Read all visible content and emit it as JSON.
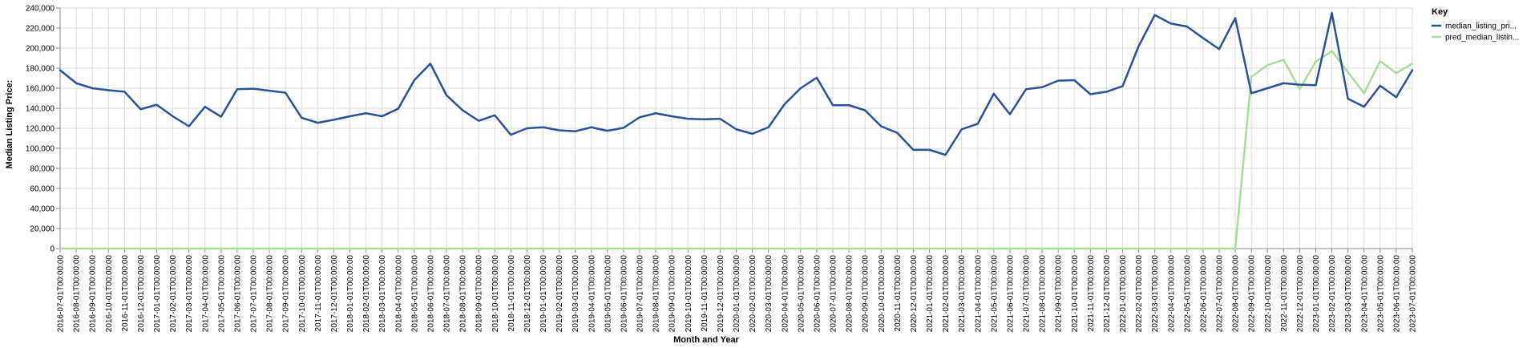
{
  "chart_data": {
    "type": "line",
    "title": "",
    "xlabel": "Month and Year",
    "ylabel": "Median Listing Price:",
    "ylim": [
      0,
      240000
    ],
    "y_ticks": [
      0,
      20000,
      40000,
      60000,
      80000,
      100000,
      120000,
      140000,
      160000,
      180000,
      200000,
      220000,
      240000
    ],
    "y_tick_labels": [
      "0",
      "20,000",
      "40,000",
      "60,000",
      "80,000",
      "100,000",
      "120,000",
      "140,000",
      "160,000",
      "180,000",
      "200,000",
      "220,000",
      "240,000"
    ],
    "grid": true,
    "legend": {
      "title": "Key",
      "position": "right"
    },
    "x": [
      "2016-07-01T00:00:00",
      "2016-08-01T00:00:00",
      "2016-09-01T00:00:00",
      "2016-10-01T00:00:00",
      "2016-11-01T00:00:00",
      "2016-12-01T00:00:00",
      "2017-01-01T00:00:00",
      "2017-02-01T00:00:00",
      "2017-03-01T00:00:00",
      "2017-04-01T00:00:00",
      "2017-05-01T00:00:00",
      "2017-06-01T00:00:00",
      "2017-07-01T00:00:00",
      "2017-08-01T00:00:00",
      "2017-09-01T00:00:00",
      "2017-10-01T00:00:00",
      "2017-11-01T00:00:00",
      "2017-12-01T00:00:00",
      "2018-01-01T00:00:00",
      "2018-02-01T00:00:00",
      "2018-03-01T00:00:00",
      "2018-04-01T00:00:00",
      "2018-05-01T00:00:00",
      "2018-06-01T00:00:00",
      "2018-07-01T00:00:00",
      "2018-08-01T00:00:00",
      "2018-09-01T00:00:00",
      "2018-10-01T00:00:00",
      "2018-11-01T00:00:00",
      "2018-12-01T00:00:00",
      "2019-01-01T00:00:00",
      "2019-02-01T00:00:00",
      "2019-03-01T00:00:00",
      "2019-04-01T00:00:00",
      "2019-05-01T00:00:00",
      "2019-06-01T00:00:00",
      "2019-07-01T00:00:00",
      "2019-08-01T00:00:00",
      "2019-09-01T00:00:00",
      "2019-10-01T00:00:00",
      "2019-11-01T00:00:00",
      "2019-12-01T00:00:00",
      "2020-01-01T00:00:00",
      "2020-02-01T00:00:00",
      "2020-03-01T00:00:00",
      "2020-04-01T00:00:00",
      "2020-05-01T00:00:00",
      "2020-06-01T00:00:00",
      "2020-07-01T00:00:00",
      "2020-08-01T00:00:00",
      "2020-09-01T00:00:00",
      "2020-10-01T00:00:00",
      "2020-11-01T00:00:00",
      "2020-12-01T00:00:00",
      "2021-01-01T00:00:00",
      "2021-02-01T00:00:00",
      "2021-03-01T00:00:00",
      "2021-04-01T00:00:00",
      "2021-05-01T00:00:00",
      "2021-06-01T00:00:00",
      "2021-07-01T00:00:00",
      "2021-08-01T00:00:00",
      "2021-09-01T00:00:00",
      "2021-10-01T00:00:00",
      "2021-11-01T00:00:00",
      "2021-12-01T00:00:00",
      "2022-01-01T00:00:00",
      "2022-02-01T00:00:00",
      "2022-03-01T00:00:00",
      "2022-04-01T00:00:00",
      "2022-05-01T00:00:00",
      "2022-06-01T00:00:00",
      "2022-07-01T00:00:00",
      "2022-08-01T00:00:00",
      "2022-09-01T00:00:00",
      "2022-10-01T00:00:00",
      "2022-11-01T00:00:00",
      "2022-12-01T00:00:00",
      "2023-01-01T00:00:00",
      "2023-02-01T00:00:00",
      "2023-03-01T00:00:00",
      "2023-04-01T00:00:00",
      "2023-05-01T00:00:00",
      "2023-06-01T00:00:00",
      "2023-07-01T00:00:00"
    ],
    "series": [
      {
        "name": "median_listing_pri...",
        "color": "#2a5298",
        "values": [
          178000,
          165000,
          160000,
          158000,
          156500,
          139000,
          143500,
          132000,
          122000,
          141500,
          131500,
          159000,
          159500,
          157500,
          155500,
          130500,
          125500,
          128500,
          132000,
          135000,
          132000,
          139500,
          168000,
          184500,
          153000,
          138000,
          127500,
          133000,
          113500,
          120000,
          121000,
          118000,
          117000,
          121000,
          117500,
          120500,
          131000,
          135000,
          132000,
          129500,
          129000,
          129500,
          119000,
          114500,
          121000,
          144000,
          160000,
          170500,
          143000,
          143000,
          138000,
          122000,
          115500,
          98500,
          98500,
          93500,
          119000,
          124500,
          154500,
          134000,
          159000,
          161000,
          167500,
          168000,
          154000,
          156500,
          162000,
          202000,
          233000,
          224500,
          221500,
          210000,
          199000,
          230000,
          155000,
          160000,
          165000,
          163500,
          163000,
          235000,
          149500,
          141500,
          162500,
          151000,
          178000
        ]
      },
      {
        "name": "pred_median_listin...",
        "color": "#a8dc9a",
        "values": [
          0,
          0,
          0,
          0,
          0,
          0,
          0,
          0,
          0,
          0,
          0,
          0,
          0,
          0,
          0,
          0,
          0,
          0,
          0,
          0,
          0,
          0,
          0,
          0,
          0,
          0,
          0,
          0,
          0,
          0,
          0,
          0,
          0,
          0,
          0,
          0,
          0,
          0,
          0,
          0,
          0,
          0,
          0,
          0,
          0,
          0,
          0,
          0,
          0,
          0,
          0,
          0,
          0,
          0,
          0,
          0,
          0,
          0,
          0,
          0,
          0,
          0,
          0,
          0,
          0,
          0,
          0,
          0,
          0,
          0,
          0,
          0,
          0,
          0,
          171500,
          183000,
          188500,
          159000,
          186500,
          197000,
          176000,
          155000,
          187000,
          175000,
          184500
        ]
      }
    ]
  }
}
